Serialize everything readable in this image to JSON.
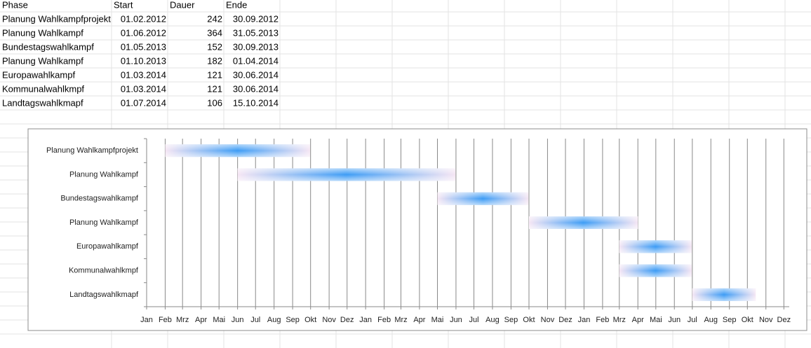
{
  "table": {
    "header": [
      "Phase",
      "Start",
      "Dauer",
      "Ende"
    ],
    "rows": [
      [
        "Planung Wahlkampfprojekt",
        "01.02.2012",
        242,
        "30.09.2012"
      ],
      [
        "Planung Wahlkampf",
        "01.06.2012",
        364,
        "31.05.2013"
      ],
      [
        "Bundestagswahlkampf",
        "01.05.2013",
        152,
        "30.09.2013"
      ],
      [
        "Planung Wahlkampf",
        "01.10.2013",
        182,
        "01.04.2014"
      ],
      [
        "Europawahlkampf",
        "01.03.2014",
        121,
        "30.06.2014"
      ],
      [
        "Kommunalwahlkmpf",
        "01.03.2014",
        121,
        "30.06.2014"
      ],
      [
        "Landtagswahlkmapf",
        "01.07.2014",
        106,
        "15.10.2014"
      ]
    ]
  },
  "chart_data": {
    "type": "gantt",
    "categories": [
      "Planung Wahlkampfprojekt",
      "Planung Wahlkampf",
      "Bundestagswahlkampf",
      "Planung Wahlkampf",
      "Europawahlkampf",
      "Kommunalwahlkmpf",
      "Landtagswahlkmapf"
    ],
    "starts": [
      "01.02.2012",
      "01.06.2012",
      "01.05.2013",
      "01.10.2013",
      "01.03.2014",
      "01.03.2014",
      "01.07.2014"
    ],
    "durations": [
      242,
      364,
      152,
      182,
      121,
      121,
      106
    ],
    "color": "#3d9cf5",
    "xlim": [
      "01.01.2012",
      "10.12.2014"
    ],
    "grid": true,
    "xticks": [
      {
        "value": "01.01.2012",
        "label": "Jan"
      },
      {
        "value": "01.02.2012",
        "label": "Feb"
      },
      {
        "value": "01.03.2012",
        "label": "Mrz"
      },
      {
        "value": "01.04.2012",
        "label": "Apr"
      },
      {
        "value": "01.05.2012",
        "label": "Mai"
      },
      {
        "value": "01.06.2012",
        "label": "Jun"
      },
      {
        "value": "01.07.2012",
        "label": "Jul"
      },
      {
        "value": "01.08.2012",
        "label": "Aug"
      },
      {
        "value": "01.09.2012",
        "label": "Sep"
      },
      {
        "value": "01.10.2012",
        "label": "Okt"
      },
      {
        "value": "01.11.2012",
        "label": "Nov"
      },
      {
        "value": "01.12.2012",
        "label": "Dez"
      },
      {
        "value": "01.01.2013",
        "label": "Jan"
      },
      {
        "value": "01.02.2013",
        "label": "Feb"
      },
      {
        "value": "01.03.2013",
        "label": "Mrz"
      },
      {
        "value": "01.04.2013",
        "label": "Apr"
      },
      {
        "value": "01.05.2013",
        "label": "Mai"
      },
      {
        "value": "01.06.2013",
        "label": "Jun"
      },
      {
        "value": "01.07.2013",
        "label": "Jul"
      },
      {
        "value": "01.08.2013",
        "label": "Aug"
      },
      {
        "value": "01.09.2013",
        "label": "Sep"
      },
      {
        "value": "01.10.2013",
        "label": "Okt"
      },
      {
        "value": "01.11.2013",
        "label": "Nov"
      },
      {
        "value": "01.12.2013",
        "label": "Dez"
      },
      {
        "value": "01.01.2014",
        "label": "Jan"
      },
      {
        "value": "01.02.2014",
        "label": "Feb"
      },
      {
        "value": "01.03.2014",
        "label": "Mrz"
      },
      {
        "value": "01.04.2014",
        "label": "Apr"
      },
      {
        "value": "01.05.2014",
        "label": "Mai"
      },
      {
        "value": "01.06.2014",
        "label": "Jun"
      },
      {
        "value": "01.07.2014",
        "label": "Jul"
      },
      {
        "value": "01.08.2014",
        "label": "Aug"
      },
      {
        "value": "01.09.2014",
        "label": "Sep"
      },
      {
        "value": "01.10.2014",
        "label": "Okt"
      },
      {
        "value": "01.11.2014",
        "label": "Nov"
      },
      {
        "value": "01.12.2014",
        "label": "Dez"
      }
    ]
  }
}
